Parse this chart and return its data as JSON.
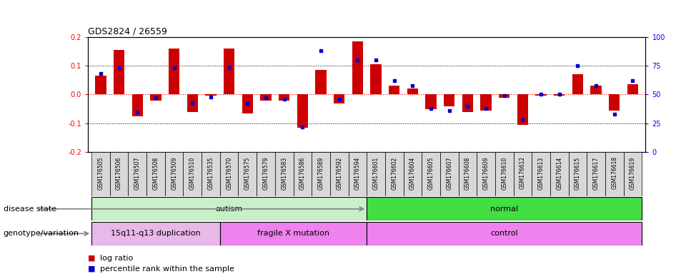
{
  "title": "GDS2824 / 26559",
  "samples": [
    "GSM176505",
    "GSM176506",
    "GSM176507",
    "GSM176508",
    "GSM176509",
    "GSM176510",
    "GSM176535",
    "GSM176570",
    "GSM176575",
    "GSM176579",
    "GSM176583",
    "GSM176586",
    "GSM176589",
    "GSM176592",
    "GSM176594",
    "GSM176601",
    "GSM176602",
    "GSM176604",
    "GSM176605",
    "GSM176607",
    "GSM176608",
    "GSM176609",
    "GSM176610",
    "GSM176612",
    "GSM176613",
    "GSM176614",
    "GSM176615",
    "GSM176617",
    "GSM176618",
    "GSM176619"
  ],
  "log_ratio": [
    0.065,
    0.155,
    -0.075,
    -0.02,
    0.16,
    -0.06,
    -0.005,
    0.16,
    -0.065,
    -0.02,
    -0.02,
    -0.115,
    0.085,
    -0.03,
    0.185,
    0.105,
    0.03,
    0.02,
    -0.05,
    -0.04,
    -0.06,
    -0.055,
    -0.01,
    -0.105,
    -0.005,
    -0.005,
    0.07,
    0.03,
    -0.055,
    0.035
  ],
  "percentile": [
    68,
    73,
    35,
    47,
    73,
    43,
    48,
    73,
    42,
    47,
    46,
    22,
    88,
    46,
    80,
    80,
    62,
    58,
    38,
    36,
    40,
    38,
    49,
    28,
    50,
    50,
    75,
    58,
    33,
    62
  ],
  "disease_state_groups": [
    {
      "label": "autism",
      "start": 0,
      "end": 15,
      "color": "#c8f0c8"
    },
    {
      "label": "normal",
      "start": 15,
      "end": 30,
      "color": "#44dd44"
    }
  ],
  "genotype_groups": [
    {
      "label": "15q11-q13 duplication",
      "start": 0,
      "end": 7,
      "color": "#e8b8e8"
    },
    {
      "label": "fragile X mutation",
      "start": 7,
      "end": 15,
      "color": "#ee82ee"
    },
    {
      "label": "control",
      "start": 15,
      "end": 30,
      "color": "#ee82ee"
    }
  ],
  "ylim": [
    -0.2,
    0.2
  ],
  "yticks": [
    -0.2,
    -0.1,
    0.0,
    0.1,
    0.2
  ],
  "right_yticks": [
    0,
    25,
    50,
    75,
    100
  ],
  "bar_color": "#cc0000",
  "dot_color": "#0000cc",
  "bg_color": "#ffffff",
  "tick_label_bg": "#d8d8d8",
  "legend_items": [
    "log ratio",
    "percentile rank within the sample"
  ]
}
